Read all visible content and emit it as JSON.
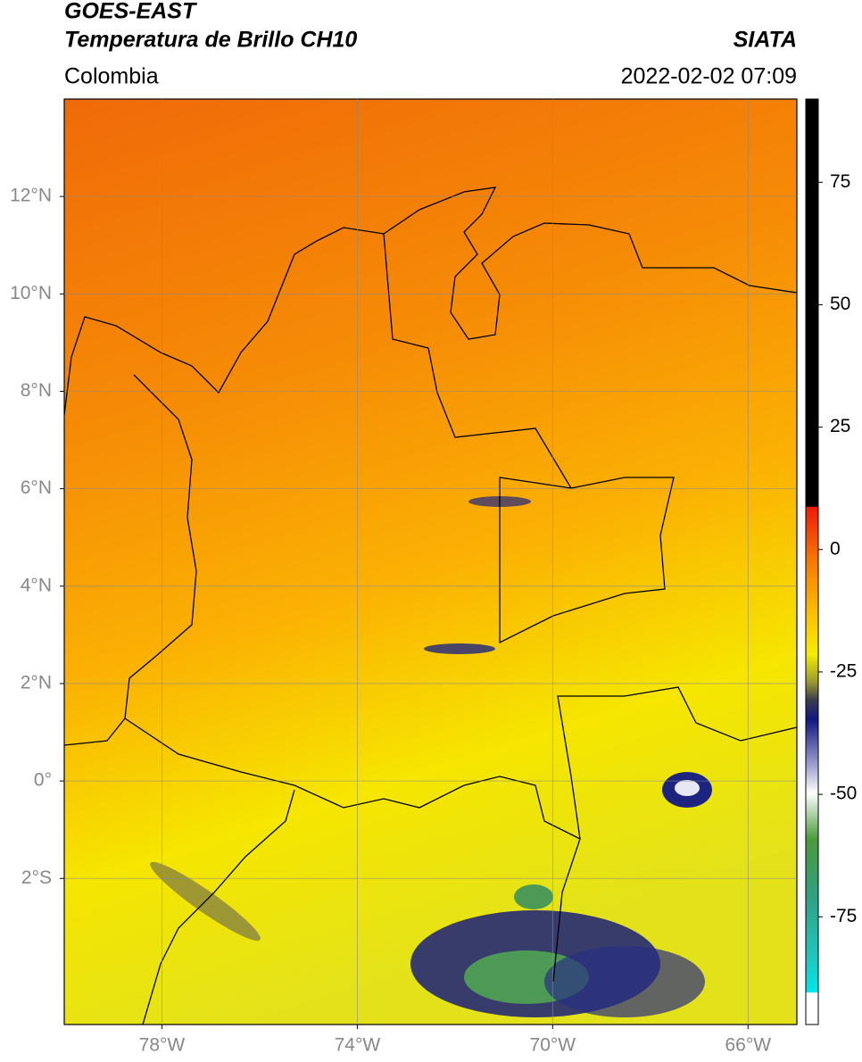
{
  "map": {
    "title": "GOES-EAST",
    "subtitle": "Temperatura de Brillo CH10",
    "source": "SIATA",
    "region": "Colombia",
    "datetime": "2022-02-02 07:09",
    "xlim": [
      -80,
      -65
    ],
    "ylim": [
      -5,
      14
    ],
    "xticks": [
      {
        "value": -78,
        "label": "78°W"
      },
      {
        "value": -74,
        "label": "74°W"
      },
      {
        "value": -70,
        "label": "70°W"
      },
      {
        "value": -66,
        "label": "66°W"
      }
    ],
    "yticks": [
      {
        "value": 12,
        "label": "12°N"
      },
      {
        "value": 10,
        "label": "10°N"
      },
      {
        "value": 8,
        "label": "8°N"
      },
      {
        "value": 6,
        "label": "6°N"
      },
      {
        "value": 4,
        "label": "4°N"
      },
      {
        "value": 2,
        "label": "2°N"
      },
      {
        "value": 0,
        "label": "0°"
      },
      {
        "value": -2,
        "label": "2°S"
      }
    ],
    "colorbar": {
      "lim": [
        -97,
        92
      ],
      "ticks": [
        75,
        50,
        25,
        0,
        -25,
        -50,
        -75
      ]
    }
  }
}
